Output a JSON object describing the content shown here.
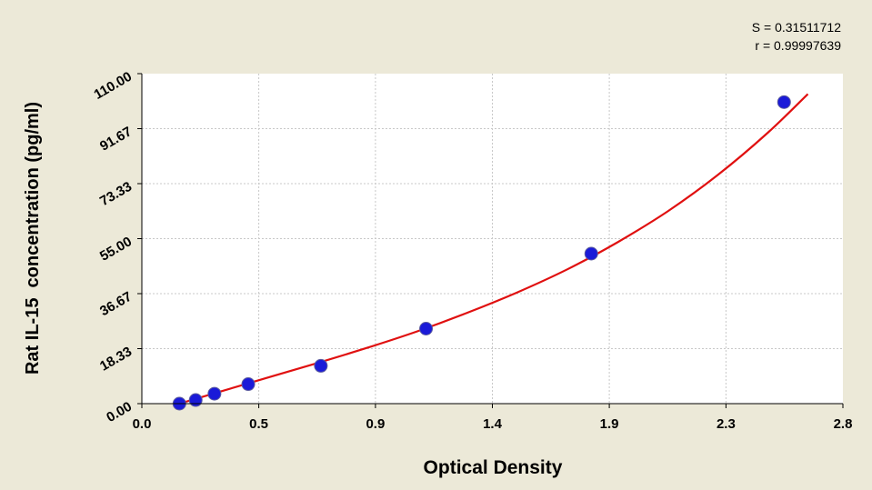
{
  "stats": {
    "s_text": "S = 0.31511712",
    "r_text": "r = 0.99997639"
  },
  "chart_data": {
    "type": "scatter",
    "title": "",
    "xlabel": "Optical Density",
    "ylabel": "Rat IL-15  concentration (pg/ml)",
    "xlim": [
      0.0,
      2.8
    ],
    "ylim": [
      0.0,
      110.0
    ],
    "x_ticks": [
      0.0,
      0.467,
      0.933,
      1.4,
      1.867,
      2.333,
      2.8
    ],
    "x_tick_labels": [
      "0.0",
      "0.5",
      "0.9",
      "1.4",
      "1.9",
      "2.3",
      "2.8"
    ],
    "y_ticks": [
      0.0,
      18.33,
      36.67,
      55.0,
      73.33,
      91.67,
      110.0
    ],
    "y_tick_labels": [
      "0.00",
      "18.33",
      "36.67",
      "55.00",
      "73.33",
      "91.67",
      "110.00"
    ],
    "grid": true,
    "series": [
      {
        "kind": "points",
        "color": "#1a1ad8",
        "x": [
          0.15,
          0.215,
          0.29,
          0.425,
          0.715,
          1.135,
          1.795,
          2.565
        ],
        "y": [
          0.0,
          1.2,
          3.3,
          6.5,
          12.6,
          25.0,
          50.0,
          100.5
        ]
      },
      {
        "kind": "fit-curve",
        "color": "#e01010",
        "x": [
          0.15,
          0.3,
          0.5,
          0.7,
          0.9,
          1.1,
          1.3,
          1.5,
          1.7,
          1.9,
          2.1,
          2.3,
          2.5,
          2.66
        ],
        "y": [
          0.0,
          3.7,
          8.6,
          13.5,
          18.6,
          24.1,
          30.3,
          37.1,
          44.8,
          53.8,
          64.1,
          76.2,
          90.3,
          103.2
        ]
      }
    ],
    "colors": {
      "background": "#ece9d8",
      "plot_background": "#ffffff",
      "grid": "#c8c8c8",
      "curve": "#e01010",
      "points": "#1a1ad8"
    }
  }
}
